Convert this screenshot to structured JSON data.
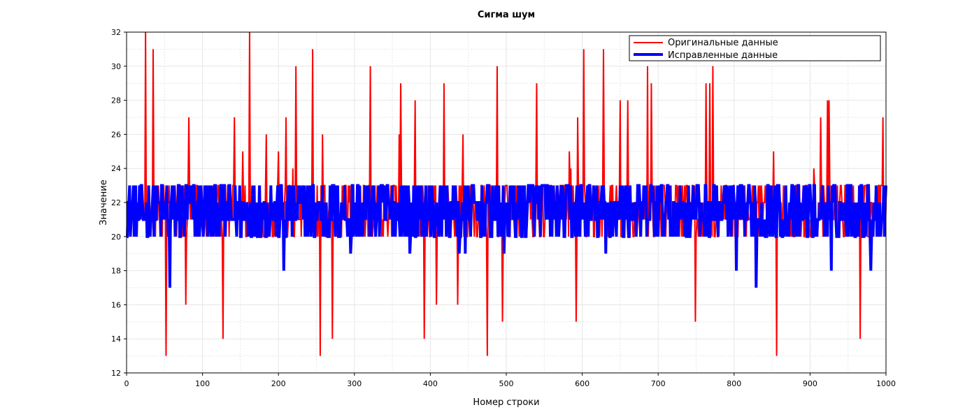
{
  "chart_data": {
    "type": "line",
    "title": "Сигма шум",
    "xlabel": "Номер строки",
    "ylabel": "Значение",
    "xlim": [
      0,
      1000
    ],
    "ylim": [
      12,
      32
    ],
    "xticks": [
      0,
      100,
      200,
      300,
      400,
      500,
      600,
      700,
      800,
      900,
      1000
    ],
    "yticks": [
      12,
      14,
      16,
      18,
      20,
      22,
      24,
      26,
      28,
      30,
      32
    ],
    "grid": true,
    "legend_position": "top-right",
    "series": [
      {
        "name": "Оригинальные данные",
        "color": "#ff0000",
        "baseline": [
          20,
          23
        ],
        "spikes": [
          [
            25,
            32
          ],
          [
            35,
            31
          ],
          [
            52,
            13
          ],
          [
            78,
            16
          ],
          [
            82,
            27
          ],
          [
            127,
            14
          ],
          [
            142,
            27
          ],
          [
            153,
            25
          ],
          [
            162,
            32
          ],
          [
            184,
            26
          ],
          [
            200,
            25
          ],
          [
            210,
            27
          ],
          [
            219,
            24
          ],
          [
            223,
            30
          ],
          [
            245,
            31
          ],
          [
            255,
            13
          ],
          [
            258,
            26
          ],
          [
            271,
            14
          ],
          [
            321,
            30
          ],
          [
            359,
            26
          ],
          [
            361,
            29
          ],
          [
            380,
            28
          ],
          [
            392,
            14
          ],
          [
            408,
            16
          ],
          [
            418,
            29
          ],
          [
            436,
            16
          ],
          [
            443,
            26
          ],
          [
            475,
            13
          ],
          [
            488,
            30
          ],
          [
            495,
            15
          ],
          [
            540,
            29
          ],
          [
            583,
            25
          ],
          [
            585,
            24
          ],
          [
            592,
            15
          ],
          [
            594,
            27
          ],
          [
            602,
            31
          ],
          [
            628,
            31
          ],
          [
            650,
            28
          ],
          [
            660,
            28
          ],
          [
            686,
            30
          ],
          [
            691,
            29
          ],
          [
            749,
            15
          ],
          [
            763,
            29
          ],
          [
            768,
            29
          ],
          [
            772,
            30
          ],
          [
            852,
            25
          ],
          [
            856,
            13
          ],
          [
            905,
            24
          ],
          [
            914,
            27
          ],
          [
            923,
            28
          ],
          [
            925,
            28
          ],
          [
            966,
            14
          ],
          [
            996,
            27
          ]
        ]
      },
      {
        "name": "Исправленные данные",
        "color": "#0000ff",
        "baseline": [
          20,
          23
        ],
        "dips": [
          [
            57,
            17
          ],
          [
            207,
            18
          ],
          [
            295,
            19
          ],
          [
            373,
            19
          ],
          [
            438,
            19
          ],
          [
            446,
            19
          ],
          [
            497,
            19
          ],
          [
            631,
            19
          ],
          [
            803,
            18
          ],
          [
            829,
            17
          ],
          [
            928,
            18
          ],
          [
            980,
            18
          ]
        ]
      }
    ]
  }
}
